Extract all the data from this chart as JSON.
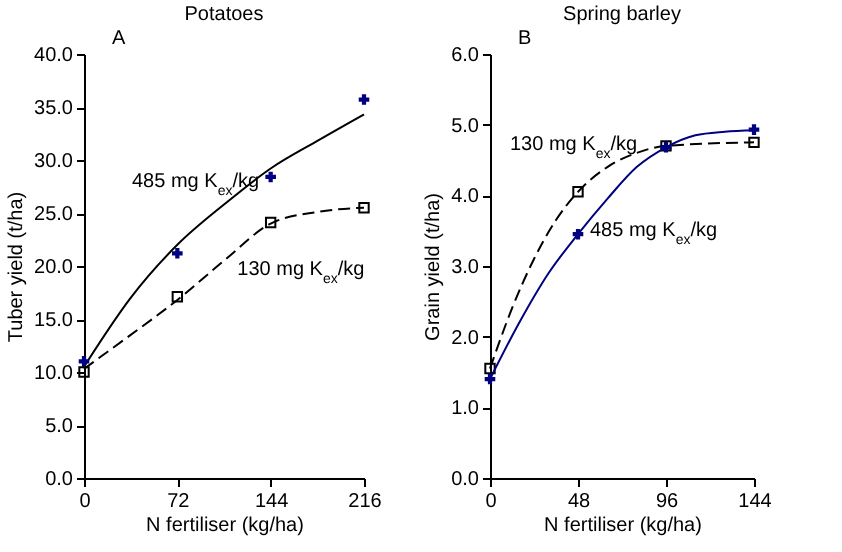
{
  "chart_data": [
    {
      "type": "line",
      "title": "Potatoes",
      "xlabel": "N fertiliser (kg/ha)",
      "ylabel": "Tuber yield (t/ha)",
      "annotations": [
        "A"
      ],
      "xlim": [
        0,
        216
      ],
      "xticks": [
        0,
        72,
        144,
        216
      ],
      "ylim": [
        0,
        40
      ],
      "yticks": [
        {
          "value": 0,
          "label": "0.0"
        },
        {
          "value": 5,
          "label": "5.0"
        },
        {
          "value": 10,
          "label": "10.0"
        },
        {
          "value": 15,
          "label": "15.0"
        },
        {
          "value": 20,
          "label": "20.0"
        },
        {
          "value": 25,
          "label": "25.0"
        },
        {
          "value": 30,
          "label": "30.0"
        },
        {
          "value": 35,
          "label": "35.0"
        },
        {
          "value": 40,
          "label": "40.0"
        }
      ],
      "grid": false,
      "legend": false,
      "series": [
        {
          "type": "line",
          "color": "#000000",
          "line_style": "solid",
          "marker": "none",
          "x": [
            0,
            36,
            72,
            108,
            144,
            180,
            216
          ],
          "values": [
            10.5,
            17,
            22,
            25.8,
            29.2,
            31.8,
            34.3
          ]
        },
        {
          "type": "scatter",
          "name": "485 mg K$_{ex}$/kg",
          "color": "#000080",
          "marker": "cross",
          "x": [
            0,
            72,
            144,
            216
          ],
          "values": [
            11.0,
            21.2,
            28.4,
            35.7
          ]
        },
        {
          "type": "line",
          "color": "#000000",
          "line_style": "dashed",
          "marker": "none",
          "x": [
            0,
            36,
            72,
            108,
            144,
            180,
            216
          ],
          "values": [
            10.3,
            13.5,
            16.8,
            20.5,
            24,
            25.1,
            25.5
          ]
        },
        {
          "type": "scatter",
          "name": "130 mg K$_{ex}$/kg",
          "color": "#000000",
          "marker": "square",
          "x": [
            0,
            72,
            144,
            216
          ],
          "values": [
            10.0,
            17.1,
            24.1,
            25.5
          ]
        }
      ]
    },
    {
      "type": "line",
      "title": "Spring barley",
      "xlabel": "N fertiliser (kg/ha)",
      "ylabel": "Grain yield (t/ha)",
      "annotations": [
        "B"
      ],
      "xlim": [
        0,
        144
      ],
      "xticks": [
        0,
        48,
        96,
        144
      ],
      "ylim": [
        0,
        6
      ],
      "yticks": [
        {
          "value": 0,
          "label": "0.0"
        },
        {
          "value": 1,
          "label": "1.0"
        },
        {
          "value": 2,
          "label": "2.0"
        },
        {
          "value": 3,
          "label": "3.0"
        },
        {
          "value": 4,
          "label": "4.0"
        },
        {
          "value": 5,
          "label": "5.0"
        },
        {
          "value": 6,
          "label": "6.0"
        }
      ],
      "grid": false,
      "legend": false,
      "series": [
        {
          "type": "line",
          "color": "#000000",
          "line_style": "dashed",
          "marker": "none",
          "x": [
            0,
            12,
            24,
            36,
            48,
            64,
            80,
            96,
            144
          ],
          "values": [
            1.55,
            2.4,
            3.1,
            3.65,
            4.05,
            4.4,
            4.6,
            4.7,
            4.75
          ]
        },
        {
          "type": "scatter",
          "name": "130 mg K$_{ex}$/kg",
          "color": "#000000",
          "marker": "square",
          "x": [
            0,
            48,
            96,
            144
          ],
          "values": [
            1.55,
            4.05,
            4.7,
            4.75
          ]
        },
        {
          "type": "line",
          "color": "#000080",
          "line_style": "solid",
          "marker": "none",
          "x": [
            0,
            16,
            32,
            48,
            64,
            80,
            96,
            112,
            128,
            144
          ],
          "values": [
            1.4,
            2.2,
            2.9,
            3.45,
            3.95,
            4.4,
            4.68,
            4.85,
            4.9,
            4.92
          ]
        },
        {
          "type": "scatter",
          "name": "485 mg K$_{ex}$/kg",
          "color": "#000080",
          "marker": "cross",
          "x": [
            0,
            48,
            96,
            144
          ],
          "values": [
            1.4,
            3.45,
            4.68,
            4.93
          ]
        }
      ]
    }
  ]
}
